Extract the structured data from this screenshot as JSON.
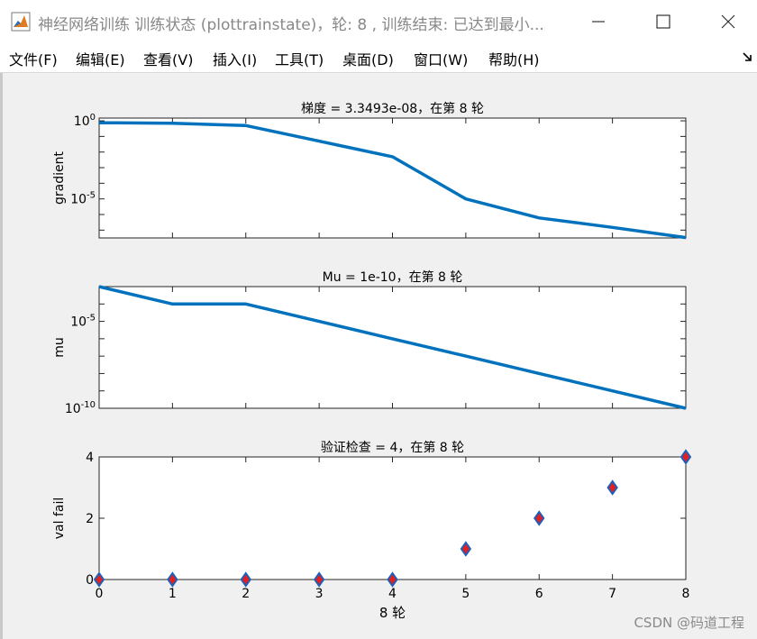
{
  "window": {
    "title": "神经网络训练 训练状态 (plottrainstate)，轮: 8 , 训练结束: 已达到最小...",
    "icon": "matlab-icon",
    "controls": [
      "minimize-icon",
      "maximize-icon",
      "close-icon"
    ]
  },
  "menu": {
    "items": [
      "文件(F)",
      "编辑(E)",
      "查看(V)",
      "插入(I)",
      "工具(T)",
      "桌面(D)",
      "窗口(W)",
      "帮助(H)"
    ],
    "dock_icon": "undock-arrow-icon"
  },
  "chart_data": [
    {
      "type": "line",
      "title": "梯度 = 3.3493e-08，在第 8 轮",
      "xlabel": "",
      "ylabel": "gradient",
      "yscale": "log",
      "xlim": [
        0,
        8
      ],
      "ylim": [
        3.16e-08,
        1.5
      ],
      "yticks": [
        1,
        1e-05
      ],
      "ytick_labels": [
        "10^0",
        "10^-5"
      ],
      "xtick_labels_shown": false,
      "x": [
        0,
        1,
        2,
        3,
        4,
        5,
        6,
        7,
        8
      ],
      "values": [
        0.75,
        0.7,
        0.5,
        0.05,
        0.005,
        1e-05,
        6e-07,
        1.5e-07,
        3.3493e-08
      ],
      "color": "#0072bd"
    },
    {
      "type": "line",
      "title": "Mu = 1e-10，在第 8 轮",
      "xlabel": "",
      "ylabel": "mu",
      "yscale": "log",
      "xlim": [
        0,
        8
      ],
      "ylim": [
        1e-10,
        0.001
      ],
      "yticks": [
        1e-05,
        1e-10
      ],
      "ytick_labels": [
        "10^-5",
        "10^-10"
      ],
      "xtick_labels_shown": false,
      "x": [
        0,
        1,
        2,
        3,
        4,
        5,
        6,
        7,
        8
      ],
      "values": [
        0.001,
        0.0001,
        0.0001,
        1e-05,
        1e-06,
        1e-07,
        1e-08,
        1e-09,
        1e-10
      ],
      "color": "#0072bd"
    },
    {
      "type": "scatter",
      "title": "验证检查 = 4，在第 8 轮",
      "xlabel": "8 轮",
      "ylabel": "val fail",
      "xlim": [
        0,
        8
      ],
      "ylim": [
        0,
        4
      ],
      "yticks": [
        0,
        2,
        4
      ],
      "xticks": [
        0,
        1,
        2,
        3,
        4,
        5,
        6,
        7,
        8
      ],
      "x": [
        0,
        1,
        2,
        3,
        4,
        5,
        6,
        7,
        8
      ],
      "values": [
        0,
        0,
        0,
        0,
        0,
        1,
        2,
        3,
        4
      ],
      "marker": "diamond",
      "marker_fill": "#e51e1e",
      "marker_edge": "#1f5fb8"
    }
  ],
  "watermark": "CSDN @码道工程"
}
